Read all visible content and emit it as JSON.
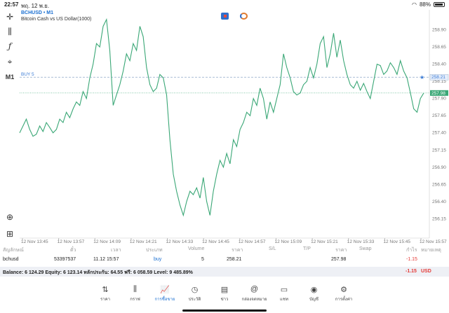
{
  "status": {
    "time": "22:57",
    "date": "พฤ. 12 พ.ย.",
    "battery": "88%",
    "battery_level": 0.88
  },
  "chart_header": {
    "symbol": "BCHUSD • M1",
    "description": "Bitcoin Cash vs US Dollar(1000)"
  },
  "toolbar": {
    "timeframe": "M1"
  },
  "chart_data": {
    "type": "line",
    "color": "#3aa776",
    "x_ticks": [
      "12 Nov 13:45",
      "12 Nov 13:57",
      "12 Nov 14:09",
      "12 Nov 14:21",
      "12 Nov 14:33",
      "12 Nov 14:45",
      "12 Nov 14:57",
      "12 Nov 15:09",
      "12 Nov 15:21",
      "12 Nov 15:33",
      "12 Nov 15:45",
      "12 Nov 15:57"
    ],
    "y_ticks": [
      "258.90",
      "258.65",
      "258.40",
      "258.15",
      "257.90",
      "257.65",
      "257.40",
      "257.15",
      "256.90",
      "256.65",
      "256.40",
      "256.15"
    ],
    "ylim": [
      255.95,
      259.15
    ],
    "values": [
      257.4,
      257.5,
      257.6,
      257.45,
      257.35,
      257.38,
      257.5,
      257.42,
      257.55,
      257.48,
      257.4,
      257.45,
      257.6,
      257.55,
      257.7,
      257.62,
      257.75,
      257.85,
      257.8,
      258.0,
      257.9,
      258.2,
      258.4,
      258.7,
      258.65,
      258.95,
      259.05,
      258.6,
      257.8,
      257.95,
      258.1,
      258.3,
      258.55,
      258.45,
      258.7,
      258.6,
      258.95,
      258.8,
      258.35,
      258.1,
      258.0,
      258.05,
      258.25,
      258.2,
      257.95,
      257.3,
      256.8,
      256.55,
      256.35,
      256.2,
      256.4,
      256.55,
      256.5,
      256.6,
      256.45,
      256.75,
      256.4,
      256.2,
      256.55,
      256.8,
      257.0,
      256.9,
      257.1,
      256.95,
      257.3,
      257.2,
      257.45,
      257.55,
      257.7,
      257.65,
      257.9,
      257.8,
      258.05,
      257.9,
      257.6,
      257.85,
      257.7,
      257.9,
      258.1,
      258.55,
      258.35,
      258.2,
      258.0,
      257.95,
      257.98,
      258.1,
      258.15,
      258.35,
      258.2,
      258.4,
      258.7,
      258.8,
      258.35,
      258.55,
      258.85,
      258.5,
      258.75,
      258.45,
      258.25,
      258.1,
      258.05,
      258.15,
      258.02,
      258.12,
      258.0,
      257.9,
      258.15,
      258.4,
      258.38,
      258.25,
      258.3,
      258.42,
      258.35,
      258.25,
      258.45,
      258.3,
      258.2,
      257.98,
      257.75,
      257.7,
      257.9,
      257.98
    ],
    "buy_line": {
      "label": "BUY 5",
      "value": 258.21,
      "price_tag": "258.21"
    },
    "bid_line": {
      "value": 257.98,
      "price_tag": "257.98"
    }
  },
  "trade_columns": {
    "symbol": "สัญลักษณ์",
    "ticket": "ตั๋ว",
    "time": "เวลา",
    "type": "ประเภท",
    "volume": "Volume",
    "price": "ราคา",
    "sl": "S/L",
    "tp": "T/P",
    "price2": "ราคา",
    "swap": "Swap",
    "profit": "กำไร",
    "comment": "หมายเหตุ"
  },
  "trade": {
    "symbol": "bchusd",
    "ticket": "53397537",
    "time": "11.12 15:57",
    "type": "buy",
    "volume": "5",
    "price": "258.21",
    "current": "257.98",
    "profit": "-1.15"
  },
  "balance": {
    "text": "Balance: 6 124.29 Equity: 6 123.14 หลักประกัน: 64.55 ฟรี: 6 058.59 Level: 9 485.89%",
    "profit": "-1.15",
    "currency": "USD"
  },
  "nav": [
    {
      "label": "ราคา",
      "icon": "quotes-icon",
      "glyph": "⇅"
    },
    {
      "label": "กราฟ",
      "icon": "chart-icon",
      "glyph": "⫼"
    },
    {
      "label": "การซื้อขาย",
      "icon": "trade-icon",
      "glyph": "📈",
      "active": true
    },
    {
      "label": "ประวัติ",
      "icon": "history-icon",
      "glyph": "◷"
    },
    {
      "label": "ข่าว",
      "icon": "news-icon",
      "glyph": "▤"
    },
    {
      "label": "กล่องจดหมาย",
      "icon": "mailbox-icon",
      "glyph": "@"
    },
    {
      "label": "แชท",
      "icon": "chat-icon",
      "glyph": "▭"
    },
    {
      "label": "บัญชี",
      "icon": "account-icon",
      "glyph": "◉"
    },
    {
      "label": "การตั้งค่า",
      "icon": "settings-icon",
      "glyph": "⚙"
    }
  ]
}
